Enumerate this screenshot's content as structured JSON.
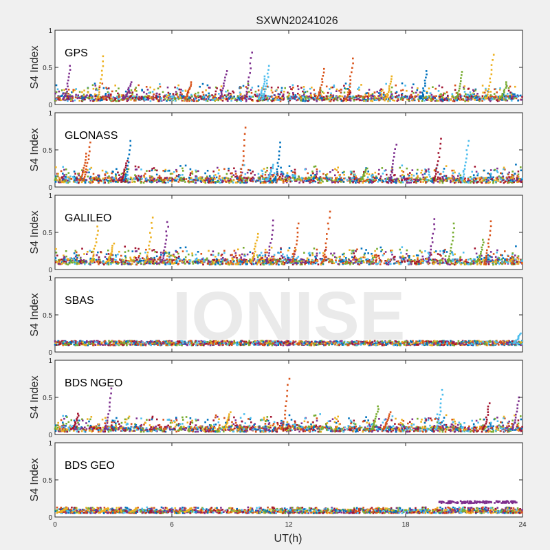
{
  "title": "SXWN20241026",
  "watermark": "IONISE",
  "colors": [
    "#0072BD",
    "#D95319",
    "#EDB120",
    "#7E2F8E",
    "#77AC30",
    "#4DBEEE",
    "#A2142F"
  ],
  "chart_data": {
    "type": "scatter",
    "title": "SXWN20241026",
    "xlabel": "UT(h)",
    "ylabel": "S4 Index",
    "xlim": [
      0,
      24
    ],
    "ylim": [
      0,
      1
    ],
    "xticks": [
      "0",
      "6",
      "12",
      "18",
      "24"
    ],
    "yticks": [
      "0",
      "0.5",
      "1"
    ],
    "grid": false,
    "panels": [
      {
        "label": "GPS",
        "baseline": 0.08,
        "spikes": [
          {
            "x": 0.8,
            "y": 0.52,
            "c": 3
          },
          {
            "x": 2.5,
            "y": 0.65,
            "c": 2
          },
          {
            "x": 3.9,
            "y": 0.3,
            "c": 3
          },
          {
            "x": 7.0,
            "y": 0.3,
            "c": 1
          },
          {
            "x": 8.8,
            "y": 0.45,
            "c": 3
          },
          {
            "x": 10.1,
            "y": 0.7,
            "c": 3
          },
          {
            "x": 10.8,
            "y": 0.38,
            "c": 5
          },
          {
            "x": 11.0,
            "y": 0.52,
            "c": 5
          },
          {
            "x": 13.8,
            "y": 0.48,
            "c": 1
          },
          {
            "x": 15.3,
            "y": 0.62,
            "c": 1
          },
          {
            "x": 17.3,
            "y": 0.38,
            "c": 2
          },
          {
            "x": 19.1,
            "y": 0.45,
            "c": 0
          },
          {
            "x": 20.9,
            "y": 0.44,
            "c": 4
          },
          {
            "x": 22.5,
            "y": 0.67,
            "c": 2
          },
          {
            "x": 23.2,
            "y": 0.3,
            "c": 4
          }
        ]
      },
      {
        "label": "GLONASS",
        "baseline": 0.09,
        "spikes": [
          {
            "x": 1.8,
            "y": 0.6,
            "c": 1
          },
          {
            "x": 1.6,
            "y": 0.45,
            "c": 1
          },
          {
            "x": 3.9,
            "y": 0.62,
            "c": 0
          },
          {
            "x": 3.7,
            "y": 0.35,
            "c": 6
          },
          {
            "x": 9.8,
            "y": 0.8,
            "c": 1
          },
          {
            "x": 11.6,
            "y": 0.6,
            "c": 0
          },
          {
            "x": 11.2,
            "y": 0.3,
            "c": 5
          },
          {
            "x": 17.5,
            "y": 0.57,
            "c": 3
          },
          {
            "x": 19.8,
            "y": 0.65,
            "c": 6
          },
          {
            "x": 21.2,
            "y": 0.62,
            "c": 5
          },
          {
            "x": 16.0,
            "y": 0.25,
            "c": 4
          }
        ]
      },
      {
        "label": "GALILEO",
        "baseline": 0.1,
        "spikes": [
          {
            "x": 2.2,
            "y": 0.58,
            "c": 2
          },
          {
            "x": 3.0,
            "y": 0.35,
            "c": 2
          },
          {
            "x": 5.0,
            "y": 0.7,
            "c": 2
          },
          {
            "x": 5.8,
            "y": 0.64,
            "c": 3
          },
          {
            "x": 10.4,
            "y": 0.48,
            "c": 2
          },
          {
            "x": 11.2,
            "y": 0.66,
            "c": 3
          },
          {
            "x": 12.5,
            "y": 0.62,
            "c": 1
          },
          {
            "x": 14.1,
            "y": 0.78,
            "c": 1
          },
          {
            "x": 19.5,
            "y": 0.68,
            "c": 3
          },
          {
            "x": 20.5,
            "y": 0.62,
            "c": 4
          },
          {
            "x": 22.4,
            "y": 0.65,
            "c": 1
          },
          {
            "x": 22.0,
            "y": 0.4,
            "c": 4
          }
        ]
      },
      {
        "label": "SBAS",
        "baseline": 0.12,
        "spikes": [
          {
            "x": 23.9,
            "y": 0.25,
            "c": 5
          }
        ]
      },
      {
        "label": "BDS NGEO",
        "baseline": 0.07,
        "spikes": [
          {
            "x": 2.9,
            "y": 0.62,
            "c": 3
          },
          {
            "x": 1.2,
            "y": 0.28,
            "c": 6
          },
          {
            "x": 12.0,
            "y": 0.75,
            "c": 1
          },
          {
            "x": 9.0,
            "y": 0.3,
            "c": 2
          },
          {
            "x": 16.6,
            "y": 0.38,
            "c": 4
          },
          {
            "x": 17.2,
            "y": 0.3,
            "c": 1
          },
          {
            "x": 19.9,
            "y": 0.6,
            "c": 5
          },
          {
            "x": 22.3,
            "y": 0.42,
            "c": 6
          },
          {
            "x": 23.8,
            "y": 0.5,
            "c": 3
          }
        ]
      },
      {
        "label": "BDS GEO",
        "baseline": 0.07,
        "bands": [
          {
            "x0": 19.7,
            "x1": 23.7,
            "y": 0.2,
            "c": 3
          }
        ],
        "spikes": [
          {
            "x": 0.6,
            "y": 0.12,
            "c": 2
          },
          {
            "x": 2.7,
            "y": 0.12,
            "c": 2
          },
          {
            "x": 4.2,
            "y": 0.12,
            "c": 2
          },
          {
            "x": 7.0,
            "y": 0.12,
            "c": 2
          }
        ]
      }
    ]
  }
}
